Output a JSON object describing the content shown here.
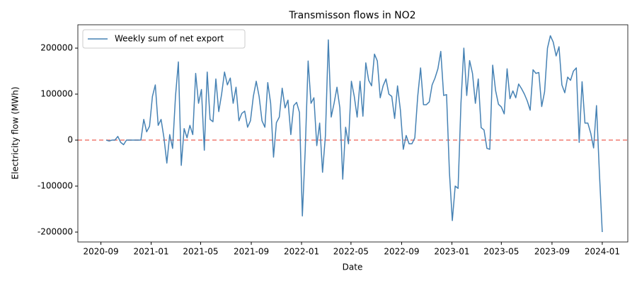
{
  "chart_data": {
    "type": "line",
    "title": "Transmisson flows in NO2",
    "xlabel": "Date",
    "ylabel": "Electricity flow (MWh)",
    "x": [
      "2020-09-14",
      "2020-09-21",
      "2020-09-28",
      "2020-10-05",
      "2020-10-12",
      "2020-10-19",
      "2020-10-26",
      "2020-11-02",
      "2020-11-09",
      "2020-11-16",
      "2020-11-23",
      "2020-11-30",
      "2020-12-07",
      "2020-12-14",
      "2020-12-21",
      "2020-12-28",
      "2021-01-04",
      "2021-01-11",
      "2021-01-18",
      "2021-01-25",
      "2021-02-01",
      "2021-02-08",
      "2021-02-15",
      "2021-02-22",
      "2021-03-01",
      "2021-03-08",
      "2021-03-15",
      "2021-03-22",
      "2021-03-29",
      "2021-04-05",
      "2021-04-12",
      "2021-04-19",
      "2021-04-26",
      "2021-05-03",
      "2021-05-10",
      "2021-05-17",
      "2021-05-24",
      "2021-05-31",
      "2021-06-07",
      "2021-06-14",
      "2021-06-21",
      "2021-06-28",
      "2021-07-05",
      "2021-07-12",
      "2021-07-19",
      "2021-07-26",
      "2021-08-02",
      "2021-08-09",
      "2021-08-16",
      "2021-08-23",
      "2021-08-30",
      "2021-09-06",
      "2021-09-13",
      "2021-09-20",
      "2021-09-27",
      "2021-10-04",
      "2021-10-11",
      "2021-10-18",
      "2021-10-25",
      "2021-11-01",
      "2021-11-08",
      "2021-11-15",
      "2021-11-22",
      "2021-11-29",
      "2021-12-06",
      "2021-12-13",
      "2021-12-20",
      "2021-12-27",
      "2022-01-03",
      "2022-01-10",
      "2022-01-17",
      "2022-01-24",
      "2022-01-31",
      "2022-02-07",
      "2022-02-14",
      "2022-02-21",
      "2022-02-28",
      "2022-03-07",
      "2022-03-14",
      "2022-03-21",
      "2022-03-28",
      "2022-04-04",
      "2022-04-11",
      "2022-04-18",
      "2022-04-25",
      "2022-05-02",
      "2022-05-09",
      "2022-05-16",
      "2022-05-23",
      "2022-05-30",
      "2022-06-06",
      "2022-06-13",
      "2022-06-20",
      "2022-06-27",
      "2022-07-04",
      "2022-07-11",
      "2022-07-18",
      "2022-07-25",
      "2022-08-01",
      "2022-08-08",
      "2022-08-15",
      "2022-08-22",
      "2022-08-29",
      "2022-09-05",
      "2022-09-12",
      "2022-09-19",
      "2022-09-26",
      "2022-10-03",
      "2022-10-10",
      "2022-10-17",
      "2022-10-24",
      "2022-10-31",
      "2022-11-07",
      "2022-11-14",
      "2022-11-21",
      "2022-11-28",
      "2022-12-05",
      "2022-12-12",
      "2022-12-19",
      "2022-12-26",
      "2023-01-02",
      "2023-01-09",
      "2023-01-16",
      "2023-01-23",
      "2023-01-30",
      "2023-02-06",
      "2023-02-13",
      "2023-02-20",
      "2023-02-27",
      "2023-03-06",
      "2023-03-13",
      "2023-03-20",
      "2023-03-27",
      "2023-04-03",
      "2023-04-10",
      "2023-04-17",
      "2023-04-24",
      "2023-05-01",
      "2023-05-08",
      "2023-05-15",
      "2023-05-22",
      "2023-05-29",
      "2023-06-05",
      "2023-06-12",
      "2023-06-19",
      "2023-06-26",
      "2023-07-03",
      "2023-07-10",
      "2023-07-17",
      "2023-07-24",
      "2023-07-31",
      "2023-08-07",
      "2023-08-14",
      "2023-08-21",
      "2023-08-28",
      "2023-09-04",
      "2023-09-11",
      "2023-09-18",
      "2023-09-25",
      "2023-10-02",
      "2023-10-09",
      "2023-10-16",
      "2023-10-23",
      "2023-10-30",
      "2023-11-06",
      "2023-11-13",
      "2023-11-20",
      "2023-11-27",
      "2023-12-04",
      "2023-12-11",
      "2023-12-18",
      "2023-12-25",
      "2024-01-01"
    ],
    "series": [
      {
        "name": "Weekly sum of net export",
        "color": "#4682b4",
        "values": [
          0,
          -2000,
          0,
          0,
          8000,
          -5000,
          -10000,
          0,
          0,
          0,
          0,
          0,
          0,
          45000,
          18000,
          30000,
          95000,
          120000,
          32000,
          45000,
          5000,
          -50000,
          12000,
          -18000,
          95000,
          170000,
          -55000,
          25000,
          5000,
          32000,
          12000,
          145000,
          80000,
          110000,
          -22000,
          148000,
          45000,
          40000,
          133000,
          62000,
          100000,
          148000,
          120000,
          135000,
          80000,
          115000,
          42000,
          58000,
          63000,
          28000,
          42000,
          95000,
          128000,
          95000,
          42000,
          28000,
          125000,
          80000,
          -37000,
          38000,
          50000,
          113000,
          70000,
          87000,
          12000,
          75000,
          82000,
          60000,
          -165000,
          -20000,
          172000,
          80000,
          92000,
          -12000,
          37000,
          -70000,
          10000,
          218000,
          50000,
          80000,
          115000,
          70000,
          -85000,
          28000,
          -8000,
          128000,
          95000,
          50000,
          128000,
          52000,
          168000,
          130000,
          118000,
          187000,
          172000,
          92000,
          118000,
          133000,
          100000,
          95000,
          47000,
          118000,
          65000,
          -20000,
          10000,
          -8000,
          -8000,
          5000,
          95000,
          157000,
          77000,
          77000,
          83000,
          120000,
          135000,
          155000,
          193000,
          97000,
          99000,
          -70000,
          -175000,
          -100000,
          -105000,
          80000,
          200000,
          97000,
          173000,
          145000,
          80000,
          133000,
          27000,
          22000,
          -18000,
          -20000,
          163000,
          108000,
          78000,
          72000,
          57000,
          155000,
          90000,
          107000,
          92000,
          122000,
          112000,
          100000,
          85000,
          65000,
          153000,
          145000,
          147000,
          73000,
          105000,
          200000,
          227000,
          213000,
          183000,
          203000,
          120000,
          103000,
          137000,
          130000,
          150000,
          157000,
          -5000,
          127000,
          37000,
          37000,
          15000,
          -17000,
          75000,
          -70000,
          -200000
        ]
      }
    ],
    "xlim": [
      "2020-07-07",
      "2024-03-03"
    ],
    "xticks": [
      "2020-09",
      "2021-01",
      "2021-05",
      "2021-09",
      "2022-01",
      "2022-05",
      "2022-09",
      "2023-01",
      "2023-05",
      "2023-09",
      "2024-01"
    ],
    "ylim": [
      -221500,
      250800
    ],
    "yticks": [
      -200000,
      -100000,
      0,
      100000,
      200000
    ],
    "hlines": [
      {
        "y": 0,
        "color": "#f07a70",
        "style": "dashed"
      }
    ],
    "legend": "upper left",
    "grid": false
  }
}
